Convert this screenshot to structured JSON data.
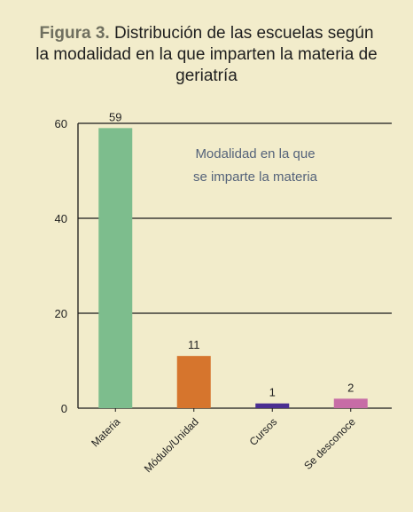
{
  "caption": {
    "prefix": "Figura 3.",
    "line1": "Distribución de las escuelas según",
    "line2": "la modalidad en la que imparten la materia de",
    "line3": "geriatría"
  },
  "chart_data": {
    "type": "bar",
    "categories": [
      "Materia",
      "Módulo/Unidad",
      "Cursos",
      "Se desconoce"
    ],
    "values": [
      59,
      11,
      1,
      2
    ],
    "colors": [
      "#7dbd8d",
      "#d6752d",
      "#4a2e91",
      "#c76ca6"
    ],
    "yticks": [
      0,
      20,
      40,
      60
    ],
    "ylim": [
      0,
      60
    ],
    "grid": true,
    "annotation": [
      "Modalidad en la que",
      "se imparte la materia"
    ]
  }
}
